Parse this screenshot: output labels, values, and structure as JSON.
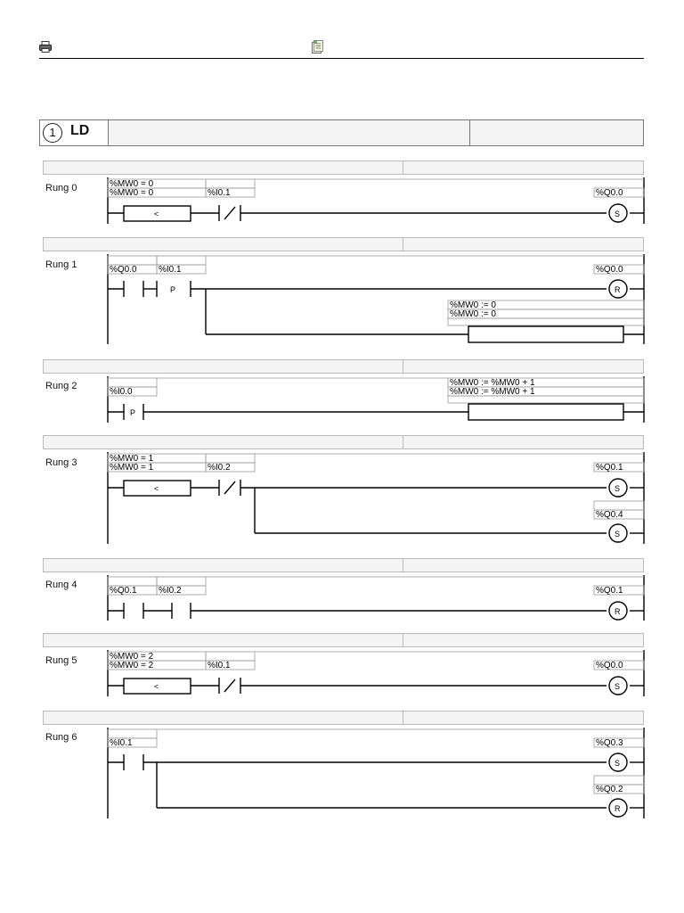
{
  "header": {
    "print_icon": "print-icon",
    "doc_icon": "document-icon"
  },
  "title": {
    "number": "1",
    "language": "LD"
  },
  "rungs": [
    {
      "label": "Rung 0",
      "compare_lines": [
        "%MW0 = 0",
        "%MW0 = 0"
      ],
      "compare_op": "<",
      "contact": "%I0.1",
      "coil": "%Q0.0",
      "coil_type": "S"
    },
    {
      "label": "Rung 1",
      "contacts": [
        "%Q0.0",
        "%I0.1"
      ],
      "contact_mark": "P",
      "coil": "%Q0.0",
      "coil_type": "R",
      "op_lines": [
        "%MW0 := 0",
        "%MW0 := 0"
      ]
    },
    {
      "label": "Rung 2",
      "contact": "%I0.0",
      "contact_mark": "P",
      "op_lines": [
        "%MW0 := %MW0 + 1",
        "%MW0 := %MW0 + 1"
      ]
    },
    {
      "label": "Rung 3",
      "compare_lines": [
        "%MW0 = 1",
        "%MW0 = 1"
      ],
      "compare_op": "<",
      "contact": "%I0.2",
      "coils": [
        "%Q0.1",
        "%Q0.4"
      ],
      "coil_type": "S"
    },
    {
      "label": "Rung 4",
      "contacts": [
        "%Q0.1",
        "%I0.2"
      ],
      "coil": "%Q0.1",
      "coil_type": "R"
    },
    {
      "label": "Rung 5",
      "compare_lines": [
        "%MW0 = 2",
        "%MW0 = 2"
      ],
      "compare_op": "<",
      "contact": "%I0.1",
      "coil": "%Q0.0",
      "coil_type": "S"
    },
    {
      "label": "Rung 6",
      "contact": "%I0.1",
      "coils": [
        "%Q0.3",
        "%Q0.2"
      ],
      "coil_types": [
        "S",
        "R"
      ]
    }
  ]
}
